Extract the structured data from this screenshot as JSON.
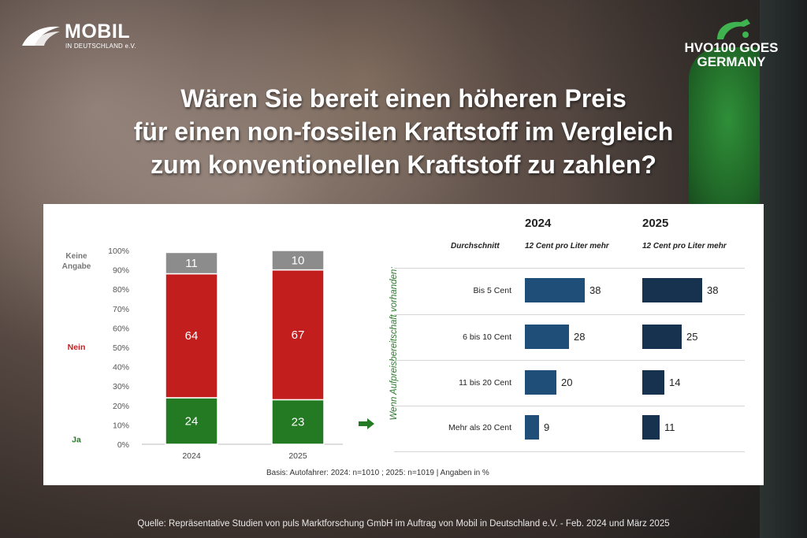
{
  "brand": {
    "logo_main": "MOBIL",
    "logo_sub": "IN DEUTSCHLAND e.V.",
    "badge_line1": "HVO100 GOES",
    "badge_line2": "GERMANY"
  },
  "title_lines": [
    "Wären Sie bereit einen höheren Preis",
    "für einen non-fossilen Kraftstoff im Vergleich",
    "zum konventionellen Kraftstoff zu zahlen?"
  ],
  "source": "Quelle: Repräsentative Studien von puls Marktforschung GmbH im Auftrag von Mobil in Deutschland e.V. - Feb. 2024 und März 2025",
  "colors": {
    "ja": "#237a22",
    "nein": "#c21e1e",
    "keine": "#8c8c8c",
    "bar_2024": "#1f4e78",
    "bar_2025": "#16324f"
  },
  "chart_data": [
    {
      "type": "bar",
      "stacked": true,
      "categories": [
        "2024",
        "2025"
      ],
      "ylim": [
        0,
        100
      ],
      "yticks": [
        "0%",
        "10%",
        "20%",
        "30%",
        "40%",
        "50%",
        "60%",
        "70%",
        "80%",
        "90%",
        "100%"
      ],
      "series": [
        {
          "name": "Ja",
          "values": [
            24,
            23
          ]
        },
        {
          "name": "Nein",
          "values": [
            64,
            67
          ]
        },
        {
          "name": "Keine Angabe",
          "values": [
            11,
            10
          ]
        }
      ],
      "legend_lines": [
        "Keine",
        "Angabe"
      ],
      "footnote": "Basis: Autofahrer: 2024: n=1010 ; 2025: n=1019 | Angaben in %"
    },
    {
      "type": "bar",
      "orientation": "horizontal",
      "side_label": "Wenn Aufpreisbereitschaft vorhanden:",
      "row_header": "Durchschnitt",
      "categories": [
        "Bis 5 Cent",
        "6 bis 10 Cent",
        "11 bis 20 Cent",
        "Mehr als 20 Cent"
      ],
      "series": [
        {
          "name": "2024",
          "average": "12 Cent pro Liter mehr",
          "values": [
            38,
            28,
            20,
            9
          ]
        },
        {
          "name": "2025",
          "average": "12 Cent pro Liter mehr",
          "values": [
            38,
            25,
            14,
            11
          ]
        }
      ]
    }
  ]
}
